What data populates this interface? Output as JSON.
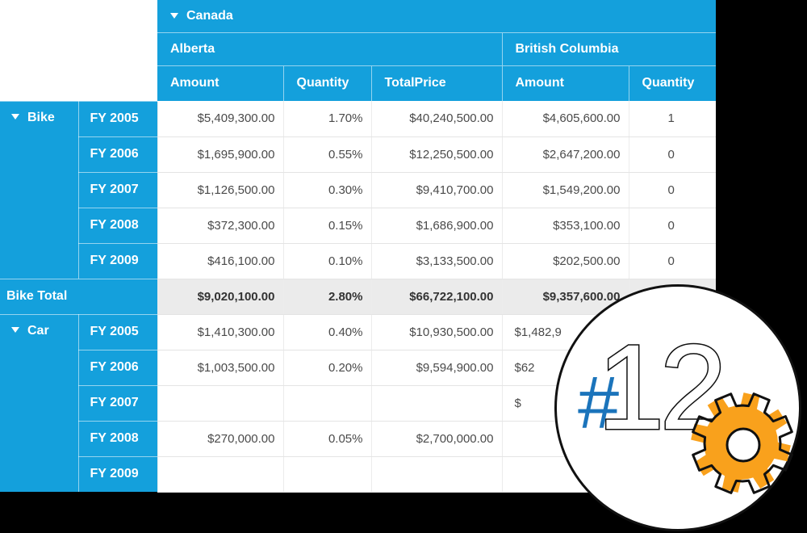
{
  "pivot": {
    "country": "Canada",
    "states": [
      "Alberta",
      "British Columbia"
    ],
    "column_headers": [
      "Amount",
      "Quantity",
      "TotalPrice",
      "Amount",
      "Quantity"
    ],
    "rows": [
      {
        "group": "Bike",
        "year": "FY 2005",
        "cells": [
          "$5,409,300.00",
          "1.70%",
          "$40,240,500.00",
          "$4,605,600.00",
          "1"
        ]
      },
      {
        "year": "FY 2006",
        "cells": [
          "$1,695,900.00",
          "0.55%",
          "$12,250,500.00",
          "$2,647,200.00",
          "0"
        ]
      },
      {
        "year": "FY 2007",
        "cells": [
          "$1,126,500.00",
          "0.30%",
          "$9,410,700.00",
          "$1,549,200.00",
          "0"
        ]
      },
      {
        "year": "FY 2008",
        "cells": [
          "$372,300.00",
          "0.15%",
          "$1,686,900.00",
          "$353,100.00",
          "0"
        ]
      },
      {
        "year": "FY 2009",
        "cells": [
          "$416,100.00",
          "0.10%",
          "$3,133,500.00",
          "$202,500.00",
          "0"
        ]
      },
      {
        "total": "Bike Total",
        "cells": [
          "$9,020,100.00",
          "2.80%",
          "$66,722,100.00",
          "$9,357,600.00",
          ""
        ]
      },
      {
        "group": "Car",
        "year": "FY 2005",
        "cells": [
          "$1,410,300.00",
          "0.40%",
          "$10,930,500.00",
          "$1,482,9",
          ""
        ]
      },
      {
        "year": "FY 2006",
        "cells": [
          "$1,003,500.00",
          "0.20%",
          "$9,594,900.00",
          "$62",
          ""
        ]
      },
      {
        "year": "FY 2007",
        "cells": [
          "",
          "",
          "",
          "$",
          ""
        ]
      },
      {
        "year": "FY 2008",
        "cells": [
          "$270,000.00",
          "0.05%",
          "$2,700,000.00",
          "",
          ""
        ]
      },
      {
        "year": "FY 2009",
        "cells": [
          "",
          "",
          "",
          "",
          ""
        ]
      }
    ]
  },
  "badge": {
    "hash": "#",
    "number": "12"
  },
  "colors": {
    "header_blue": "#14A0DC",
    "badge_hash_blue": "#1B74BB",
    "gear_orange": "#F9A11C",
    "total_row_gray": "#EBEBEB"
  }
}
